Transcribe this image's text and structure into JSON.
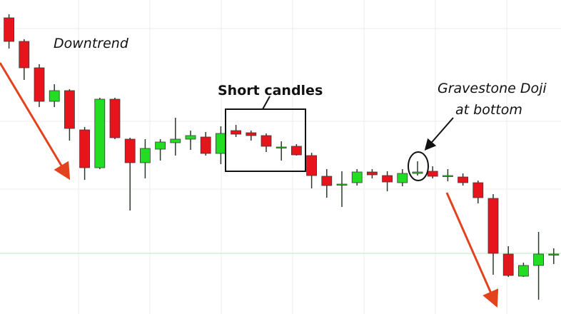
{
  "chart_data": {
    "type": "candlestick",
    "open": [
      415,
      382,
      345,
      298,
      313,
      258,
      205,
      301,
      245,
      212,
      231,
      240,
      245,
      248,
      225,
      257,
      254,
      250,
      233,
      235,
      222,
      193,
      181,
      184,
      199,
      194,
      184,
      197,
      200,
      193,
      192,
      184,
      162,
      84,
      53,
      68,
      83
    ],
    "high": [
      420,
      385,
      350,
      322,
      315,
      262,
      303,
      303,
      247,
      245,
      245,
      275,
      257,
      255,
      263,
      265,
      257,
      253,
      242,
      238,
      226,
      203,
      200,
      203,
      203,
      200,
      203,
      214,
      207,
      203,
      197,
      187,
      168,
      95,
      72,
      115,
      92
    ],
    "low": [
      372,
      328,
      290,
      290,
      243,
      188,
      203,
      245,
      145,
      190,
      215,
      222,
      230,
      222,
      210,
      248,
      243,
      227,
      215,
      222,
      176,
      163,
      150,
      180,
      190,
      172,
      179,
      194,
      190,
      186,
      180,
      155,
      55,
      52,
      52,
      20,
      70
    ],
    "close": [
      382,
      345,
      298,
      313,
      260,
      205,
      301,
      247,
      212,
      232,
      241,
      245,
      250,
      225,
      253,
      252,
      250,
      235,
      234,
      223,
      194,
      180,
      182,
      199,
      195,
      185,
      197,
      199,
      193,
      194,
      184,
      163,
      85,
      54,
      68,
      84,
      84
    ],
    "up_color": "#22dd22",
    "down_color": "#e8141b",
    "ylim": [
      0,
      440
    ],
    "annotations": [
      "Downtrend",
      "Short candles",
      "Gravestone Doji",
      "at bottom"
    ]
  }
}
